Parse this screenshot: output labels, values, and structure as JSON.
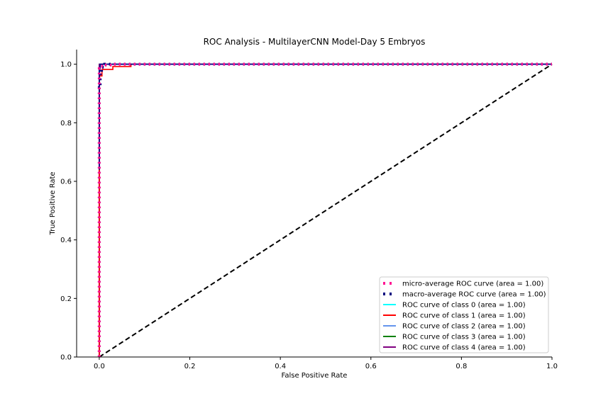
{
  "chart_data": {
    "type": "line",
    "title": "ROC Analysis - MultilayerCNN Model-Day 5 Embryos",
    "xlabel": "False Positive Rate",
    "ylabel": "True Positive Rate",
    "xlim": [
      -0.05,
      1.0
    ],
    "ylim": [
      0.0,
      1.05
    ],
    "x_ticks": [
      "0.0",
      "0.2",
      "0.4",
      "0.6",
      "0.8",
      "1.0"
    ],
    "y_ticks": [
      "0.0",
      "0.2",
      "0.4",
      "0.6",
      "0.8",
      "1.0"
    ],
    "grid": false,
    "legend_position": "lower-right",
    "series": [
      {
        "name": "micro-average ROC curve (area = 1.00)",
        "color": "#ff1493",
        "style": "dotted",
        "x": [
          0.0,
          0.0,
          0.003,
          0.003,
          0.01,
          0.01,
          0.03,
          0.03,
          1.0
        ],
        "y": [
          0.0,
          0.985,
          0.985,
          0.993,
          0.993,
          0.997,
          0.997,
          1.0,
          1.0
        ]
      },
      {
        "name": "macro-average ROC curve (area = 1.00)",
        "color": "#000080",
        "style": "dotted",
        "x": [
          0.0,
          0.0,
          0.002,
          0.002,
          0.005,
          0.005,
          0.012,
          0.012,
          1.0
        ],
        "y": [
          0.0,
          0.92,
          0.92,
          0.97,
          0.97,
          0.99,
          0.99,
          1.0,
          1.0
        ]
      },
      {
        "name": "ROC curve of class 0 (area = 1.00)",
        "color": "#00ffff",
        "style": "solid",
        "x": [
          0.0,
          0.0,
          1.0
        ],
        "y": [
          0.0,
          1.0,
          1.0
        ]
      },
      {
        "name": "ROC curve of class 1 (area = 1.00)",
        "color": "#ff0000",
        "style": "solid",
        "x": [
          0.0,
          0.0,
          0.006,
          0.006,
          0.03,
          0.03,
          0.07,
          0.07,
          1.0
        ],
        "y": [
          0.0,
          0.96,
          0.96,
          0.982,
          0.982,
          0.992,
          0.992,
          1.0,
          1.0
        ]
      },
      {
        "name": "ROC curve of class 2 (area = 1.00)",
        "color": "#6495ed",
        "style": "solid",
        "x": [
          0.0,
          0.0,
          1.0
        ],
        "y": [
          0.0,
          1.0,
          1.0
        ]
      },
      {
        "name": "ROC curve of class 3 (area = 1.00)",
        "color": "#008000",
        "style": "solid",
        "x": [
          0.0,
          0.0,
          1.0
        ],
        "y": [
          0.0,
          1.0,
          1.0
        ]
      },
      {
        "name": "ROC curve of class 4 (area = 1.00)",
        "color": "#800080",
        "style": "solid",
        "x": [
          0.0,
          0.0,
          1.0
        ],
        "y": [
          0.0,
          1.0,
          1.0
        ]
      },
      {
        "name": "",
        "color": "#000000",
        "style": "dashed",
        "x": [
          0.0,
          1.0
        ],
        "y": [
          0.0,
          1.0
        ]
      },
      {
        "name": "",
        "color": "#00008b",
        "style": "solid",
        "x": [
          0.0,
          0.0,
          0.002,
          0.002,
          1.0
        ],
        "y": [
          0.64,
          0.98,
          0.98,
          1.0,
          1.0
        ]
      }
    ]
  }
}
